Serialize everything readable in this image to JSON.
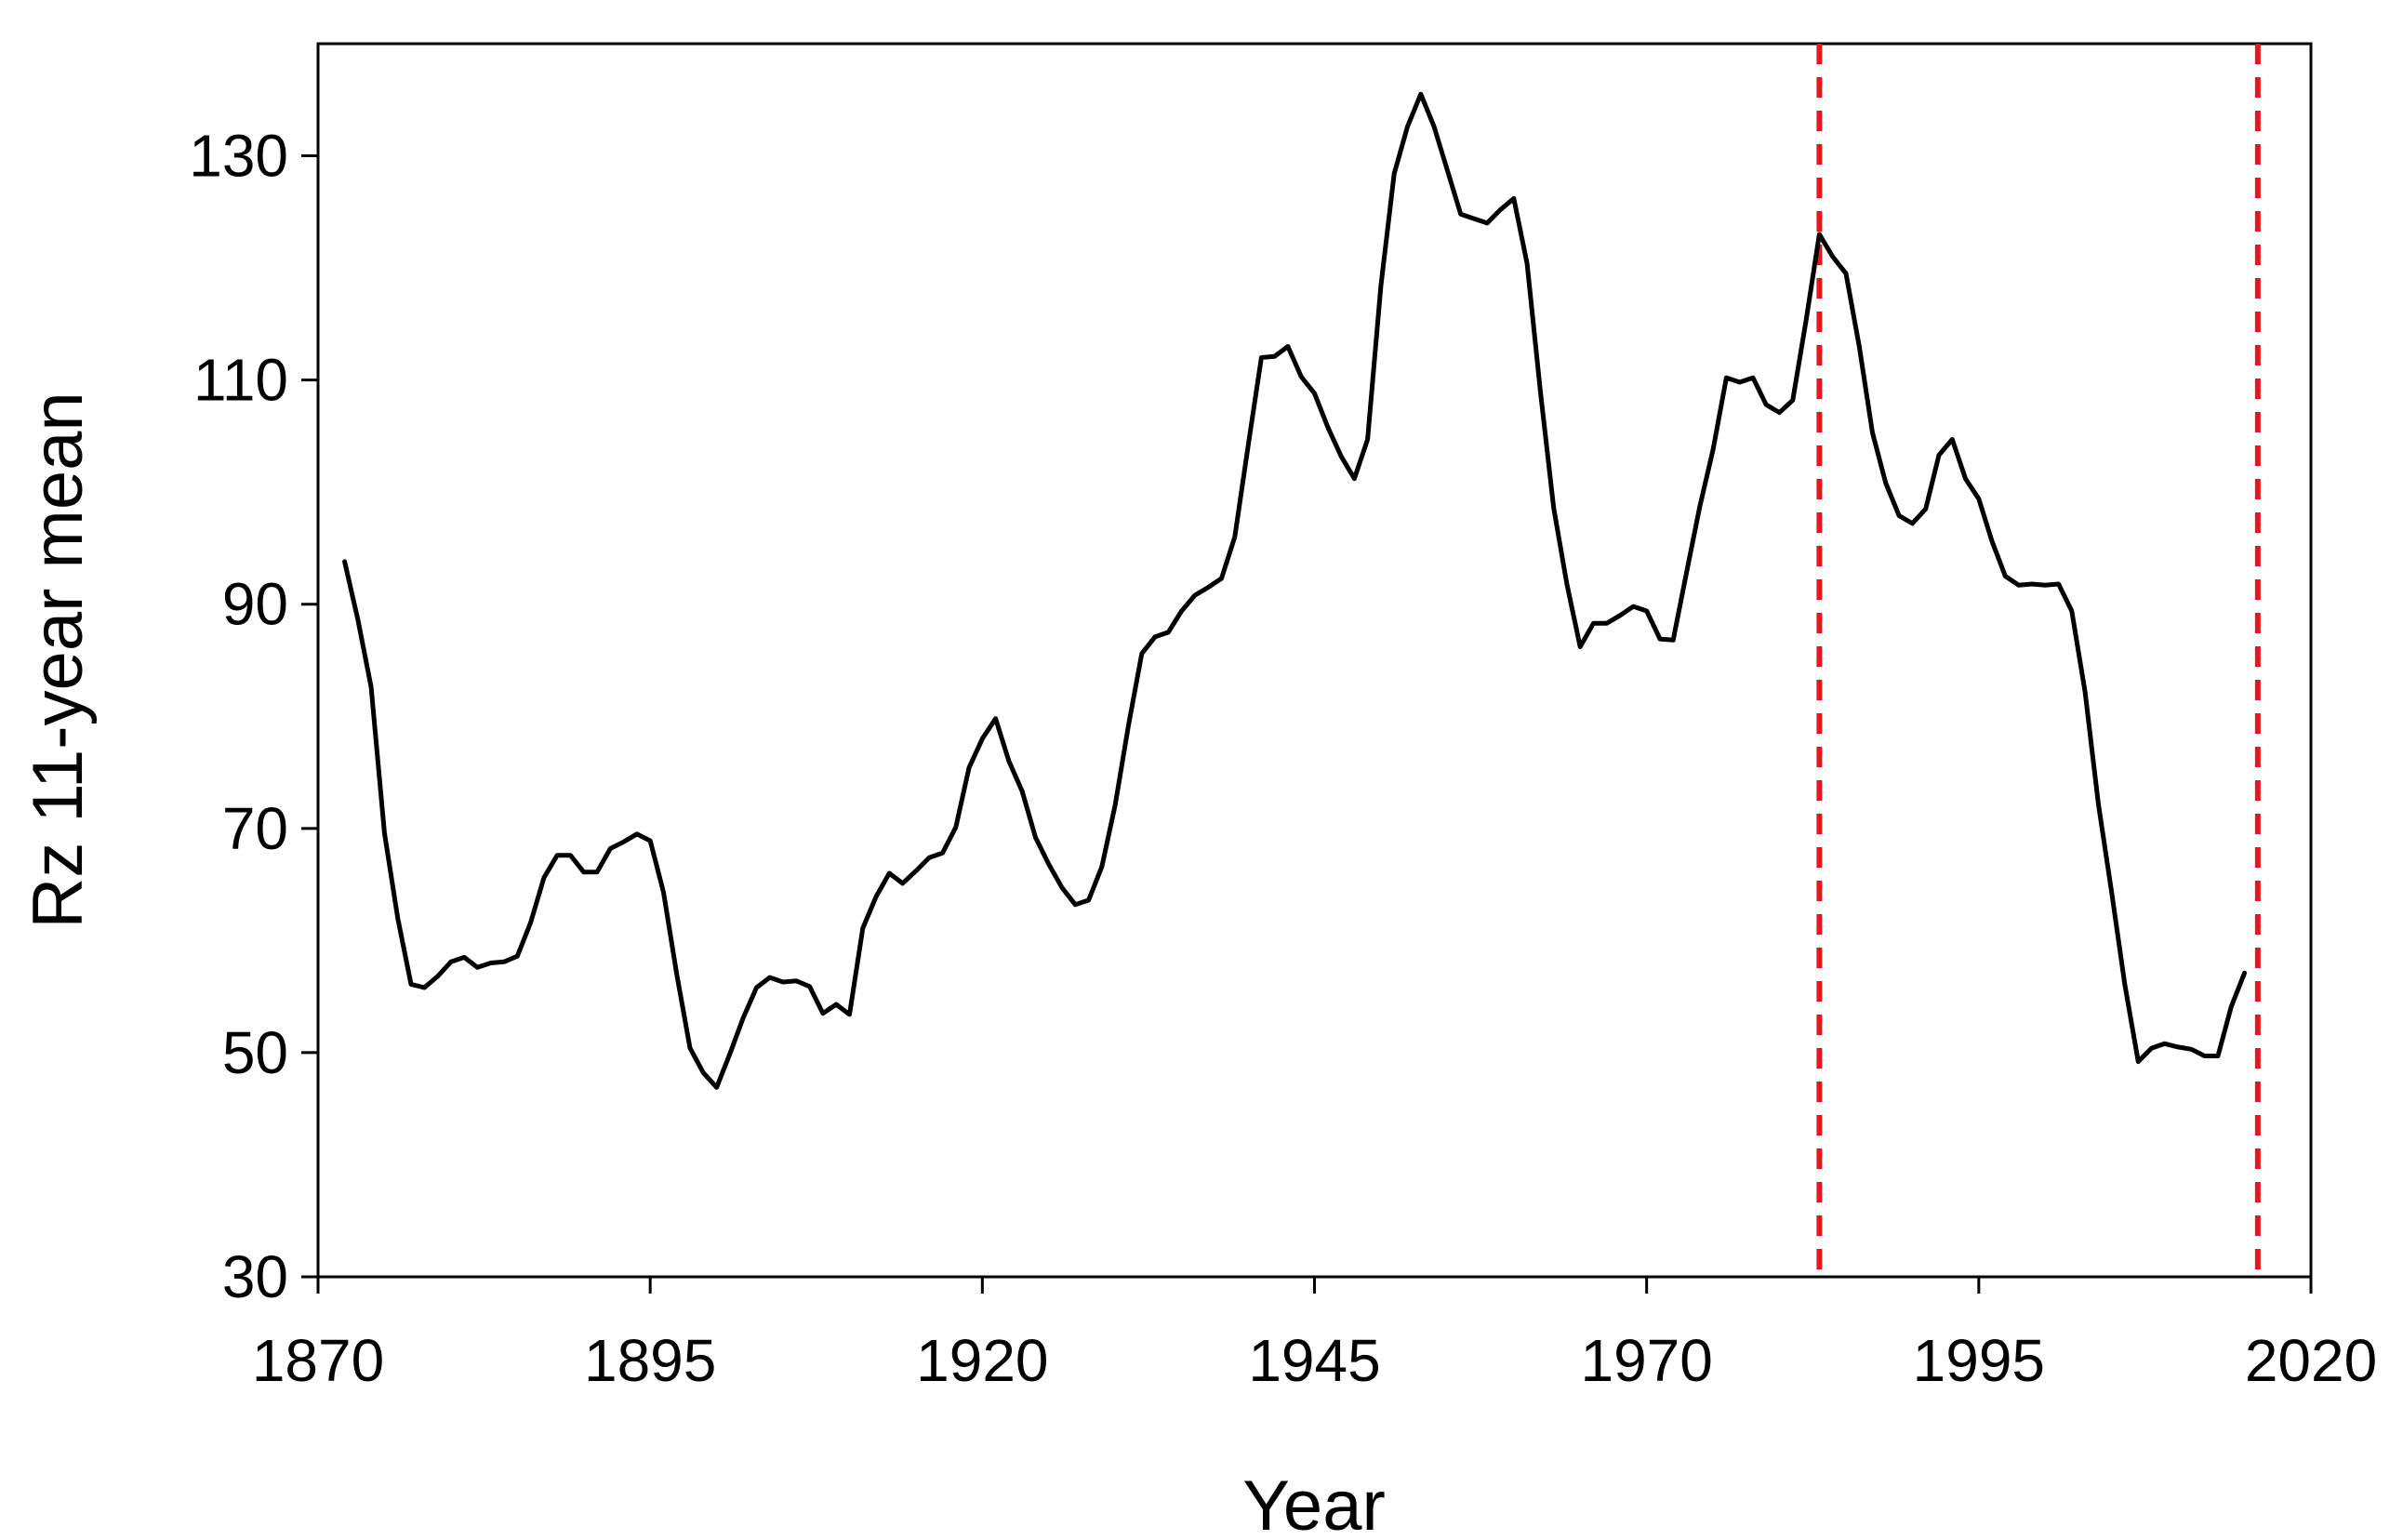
{
  "chart_data": {
    "type": "line",
    "title": "",
    "xlabel": "Year",
    "ylabel": "Rz 11-year mean",
    "xlim": [
      1870,
      2020
    ],
    "ylim": [
      30,
      140
    ],
    "xticks": [
      1870,
      1895,
      1920,
      1945,
      1970,
      1995,
      2020
    ],
    "yticks": [
      30,
      50,
      70,
      90,
      110,
      130
    ],
    "grid": false,
    "legend": "none",
    "colors": {
      "line": "#000000",
      "reference": "#e8161b",
      "axis": "#000000"
    },
    "reference_lines": [
      {
        "x": 1983,
        "style": "dashed"
      },
      {
        "x": 2016,
        "style": "dashed"
      }
    ],
    "series": [
      {
        "x": [
          1872,
          1873,
          1874,
          1875,
          1876,
          1877,
          1878,
          1879,
          1880,
          1881,
          1882,
          1883,
          1884,
          1885,
          1886,
          1887,
          1888,
          1889,
          1890,
          1891,
          1892,
          1893,
          1894,
          1895,
          1896,
          1897,
          1898,
          1899,
          1900,
          1901,
          1902,
          1903,
          1904,
          1905,
          1906,
          1907,
          1908,
          1909,
          1910,
          1911,
          1912,
          1913,
          1914,
          1915,
          1916,
          1917,
          1918,
          1919,
          1920,
          1921,
          1922,
          1923,
          1924,
          1925,
          1926,
          1927,
          1928,
          1929,
          1930,
          1931,
          1932,
          1933,
          1934,
          1935,
          1936,
          1937,
          1938,
          1939,
          1940,
          1941,
          1942,
          1943,
          1944,
          1945,
          1946,
          1947,
          1948,
          1949,
          1950,
          1951,
          1952,
          1953,
          1954,
          1955,
          1956,
          1957,
          1958,
          1959,
          1960,
          1961,
          1962,
          1963,
          1964,
          1965,
          1966,
          1967,
          1968,
          1969,
          1970,
          1971,
          1972,
          1973,
          1974,
          1975,
          1976,
          1977,
          1978,
          1979,
          1980,
          1981,
          1982,
          1983,
          1984,
          1985,
          1986,
          1987,
          1988,
          1989,
          1990,
          1991,
          1992,
          1993,
          1994,
          1995,
          1996,
          1997,
          1998,
          1999,
          2000,
          2001,
          2002,
          2003,
          2004,
          2005,
          2006,
          2007,
          2008,
          2009,
          2010,
          2011,
          2012,
          2013,
          2014,
          2015
        ],
        "values": [
          93.8,
          88.6,
          82.6,
          69.6,
          62.0,
          56.1,
          55.8,
          56.8,
          58.1,
          58.5,
          57.6,
          58.0,
          58.1,
          58.6,
          61.6,
          65.6,
          67.6,
          67.6,
          66.1,
          66.1,
          68.2,
          68.8,
          69.5,
          68.9,
          64.3,
          57.0,
          50.4,
          48.2,
          46.9,
          49.9,
          53.1,
          55.8,
          56.7,
          56.3,
          56.4,
          55.9,
          53.5,
          54.3,
          53.4,
          61.1,
          63.9,
          66.0,
          65.1,
          66.2,
          67.4,
          67.8,
          70.1,
          75.4,
          78.0,
          79.8,
          76.0,
          73.3,
          69.2,
          66.8,
          64.7,
          63.2,
          63.6,
          66.6,
          72.1,
          79.2,
          85.6,
          87.1,
          87.5,
          89.4,
          90.8,
          91.5,
          92.3,
          96.0,
          104.1,
          112.0,
          112.1,
          113.0,
          110.3,
          108.8,
          105.8,
          103.2,
          101.2,
          104.7,
          118.4,
          128.4,
          132.6,
          135.5,
          132.6,
          128.7,
          124.8,
          124.4,
          124.0,
          125.2,
          126.2,
          120.4,
          109.0,
          98.6,
          91.8,
          86.2,
          88.3,
          88.3,
          89.0,
          89.8,
          89.4,
          86.9,
          86.8,
          92.8,
          98.7,
          103.8,
          110.2,
          109.8,
          110.2,
          107.8,
          107.1,
          108.2,
          115.3,
          123.0,
          121.0,
          119.5,
          113.0,
          105.3,
          100.8,
          97.9,
          97.2,
          98.5,
          103.3,
          104.7,
          101.2,
          99.4,
          95.6,
          92.5,
          91.7,
          91.8,
          91.7,
          91.8,
          89.4,
          82.2,
          72.2,
          64.3,
          56.0,
          49.2,
          50.4,
          50.8,
          50.5,
          50.3,
          49.7,
          49.7,
          54.1,
          57.1
        ]
      }
    ]
  }
}
